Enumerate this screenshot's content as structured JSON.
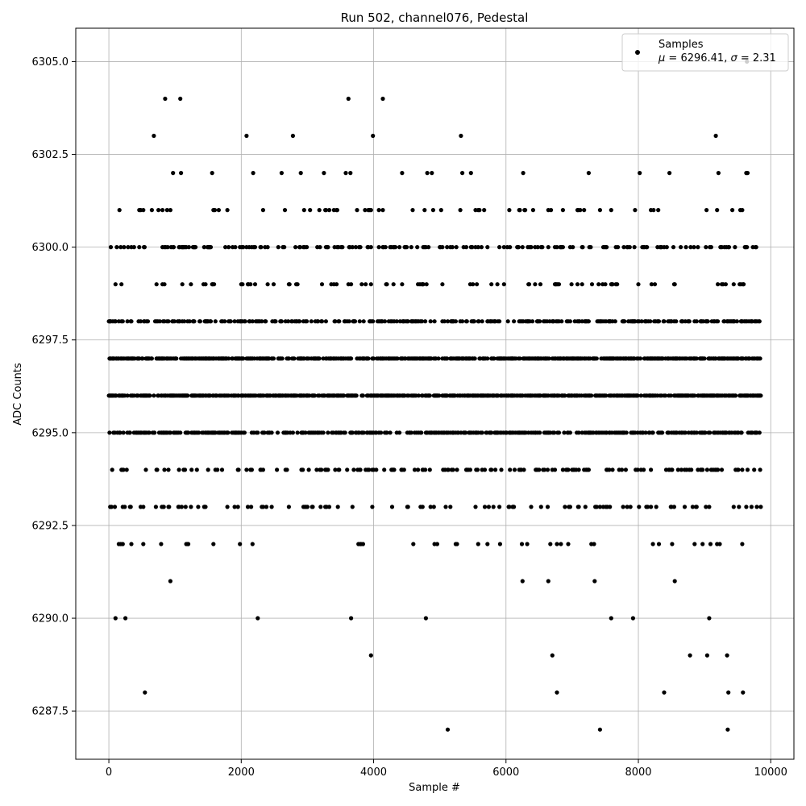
{
  "chart_data": {
    "type": "scatter",
    "title": "Run 502, channel076, Pedestal",
    "xlabel": "Sample #",
    "ylabel": "ADC Counts",
    "xlim": [
      -500,
      10350
    ],
    "ylim": [
      6286.2,
      6305.9
    ],
    "xticks": [
      0,
      2000,
      4000,
      6000,
      8000,
      10000
    ],
    "xtick_labels": [
      "0",
      "2000",
      "4000",
      "6000",
      "8000",
      "10000"
    ],
    "yticks": [
      6287.5,
      6290.0,
      6292.5,
      6295.0,
      6297.5,
      6300.0,
      6302.5,
      6305.0
    ],
    "ytick_labels": [
      "6287.5",
      "6290.0",
      "6292.5",
      "6295.0",
      "6297.5",
      "6300.0",
      "6302.5",
      "6305.0"
    ],
    "grid": true,
    "legend_position": "top-right",
    "marker_color": "#000000",
    "series": [
      {
        "name": "Samples",
        "legend_stats": "μ = 6296.41, σ = 2.31",
        "x_start": 0,
        "x_end": 9850,
        "x_step": 10,
        "level_density": {
          "6287": 0.0005,
          "6288": 0.0008,
          "6289": 0.0008,
          "6290": 0.0025,
          "6291": 0.008,
          "6292": 0.045,
          "6293": 0.1,
          "6294": 0.18,
          "6295": 0.38,
          "6296": 0.55,
          "6297": 0.55,
          "6298": 0.3,
          "6299": 0.08,
          "6300": 0.2,
          "6301": 0.06,
          "6302": 0.02,
          "6303": 0.004,
          "6304": 0.0006,
          "6305": 0.0002
        },
        "outliers": [
          [
            545,
            6288
          ],
          [
            4140,
            6304
          ],
          [
            850,
            6304
          ],
          [
            1080,
            6304
          ],
          [
            3620,
            6304
          ],
          [
            5120,
            6287
          ],
          [
            7420,
            6287
          ],
          [
            9350,
            6287
          ],
          [
            6770,
            6288
          ],
          [
            8390,
            6288
          ],
          [
            9360,
            6288
          ],
          [
            9580,
            6288
          ],
          [
            3960,
            6289
          ],
          [
            6700,
            6289
          ],
          [
            8780,
            6289
          ],
          [
            9040,
            6289
          ],
          [
            9340,
            6289
          ],
          [
            100,
            6290
          ],
          [
            250,
            6290
          ],
          [
            2250,
            6290
          ],
          [
            3660,
            6290
          ],
          [
            4790,
            6290
          ],
          [
            7590,
            6290
          ],
          [
            7920,
            6290
          ],
          [
            9070,
            6290
          ],
          [
            9640,
            6305
          ]
        ]
      }
    ]
  },
  "legend": {
    "label": "Samples",
    "stats_mu_prefix": "μ",
    "stats_mu_value": " = 6296.41, ",
    "stats_sigma_prefix": "σ",
    "stats_sigma_value": " = 2.31"
  }
}
